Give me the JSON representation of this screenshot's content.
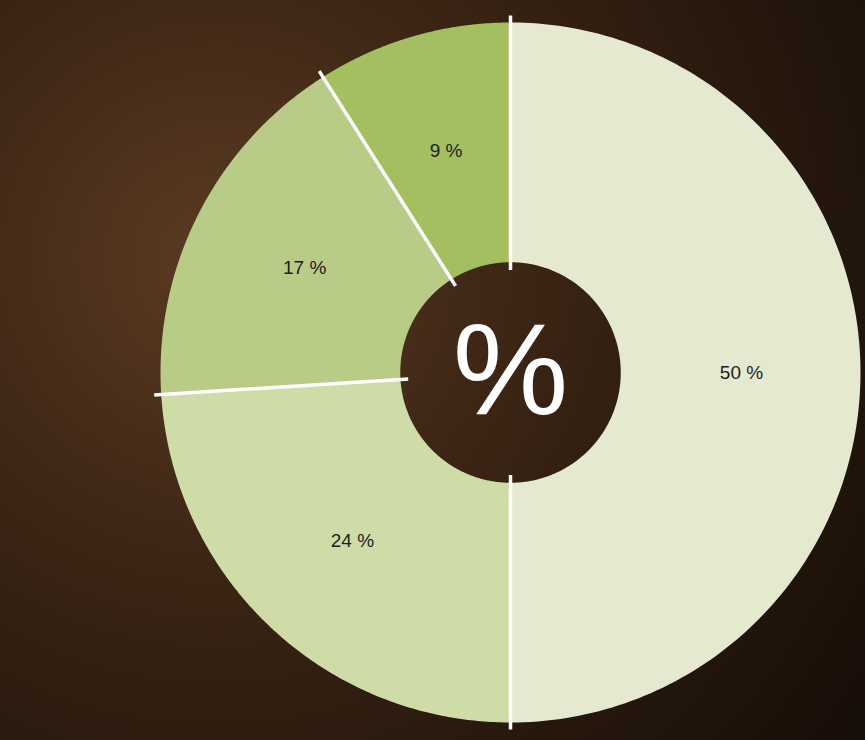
{
  "chart_data": {
    "type": "donut",
    "values": [
      50,
      24,
      17,
      9
    ],
    "value_labels": [
      "50 %",
      "24 %",
      "17 %",
      "9 %"
    ],
    "colors": [
      "#e4e9cf",
      "#d0dca8",
      "#b8cc87",
      "#a3bf5f"
    ],
    "data_labels": true,
    "tick_labels": false,
    "annotations": [
      "%"
    ]
  }
}
